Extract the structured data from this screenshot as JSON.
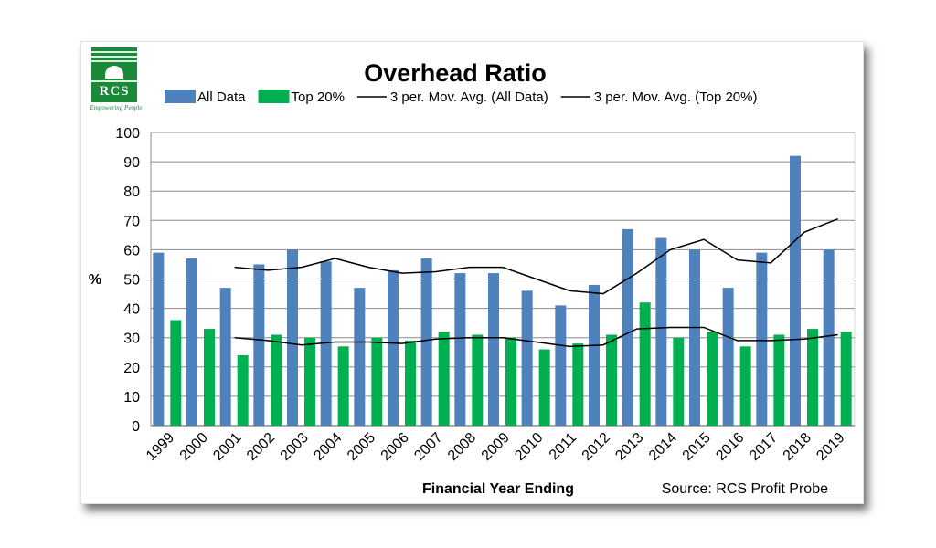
{
  "logo": {
    "text": "RCS",
    "tagline": "Empowering People"
  },
  "chart_data": {
    "type": "bar",
    "title": "Overhead Ratio",
    "xlabel": "Financial Year Ending",
    "ylabel": "%",
    "source": "Source: RCS Profit Probe",
    "ylim": [
      0,
      100
    ],
    "yticks": [
      0,
      10,
      20,
      30,
      40,
      50,
      60,
      70,
      80,
      90,
      100
    ],
    "grid": "horizontal",
    "legend_position": "top",
    "categories": [
      "1999",
      "2000",
      "2001",
      "2002",
      "2003",
      "2004",
      "2005",
      "2006",
      "2007",
      "2008",
      "2009",
      "2010",
      "2011",
      "2012",
      "2013",
      "2014",
      "2015",
      "2016",
      "2017",
      "2018",
      "2019"
    ],
    "series": [
      {
        "name": "All Data",
        "kind": "bar",
        "color": "#4f81bd",
        "values": [
          59,
          57,
          47,
          55,
          60,
          56,
          47,
          53,
          57,
          52,
          52,
          46,
          41,
          48,
          67,
          64,
          60,
          47,
          59,
          92,
          60
        ]
      },
      {
        "name": "Top 20%",
        "kind": "bar",
        "color": "#00b050",
        "values": [
          36,
          33,
          24,
          31,
          30,
          27,
          30,
          29,
          32,
          31,
          30,
          26,
          28,
          31,
          42,
          30,
          32,
          27,
          31,
          33,
          32
        ]
      },
      {
        "name": "3 per. Mov. Avg. (All Data)",
        "kind": "line",
        "color": "#000000",
        "values": [
          null,
          null,
          54,
          53,
          54,
          57,
          54,
          52,
          52.5,
          54,
          54,
          50,
          46,
          45,
          52,
          60,
          63.5,
          56.5,
          55.5,
          66,
          70.5
        ]
      },
      {
        "name": "3 per. Mov. Avg. (Top 20%)",
        "kind": "line",
        "color": "#000000",
        "values": [
          null,
          null,
          30,
          29,
          27.5,
          28.5,
          28.5,
          28,
          29.5,
          30,
          30,
          28.5,
          27,
          27.5,
          33,
          33.5,
          33.5,
          29,
          29,
          29.5,
          31
        ]
      }
    ]
  }
}
